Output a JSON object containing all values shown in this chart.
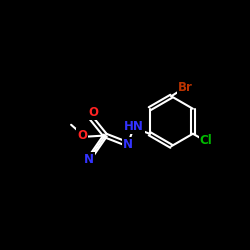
{
  "background": "#000000",
  "bond_color": "#ffffff",
  "bond_width": 1.5,
  "atom_colors": {
    "O": "#ff2222",
    "N": "#3333ff",
    "Br": "#bb3300",
    "Cl": "#00bb00",
    "C": "#ffffff"
  },
  "figsize": [
    2.5,
    2.5
  ],
  "dpi": 100,
  "xlim": [
    0,
    10
  ],
  "ylim": [
    0,
    10
  ],
  "font_size": 8.5
}
